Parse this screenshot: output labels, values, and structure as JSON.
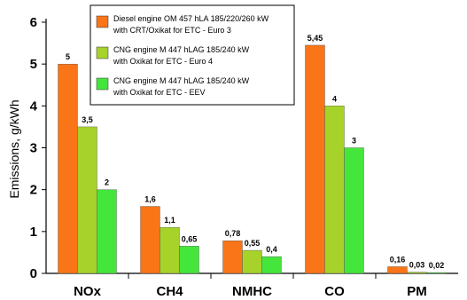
{
  "chart_data": {
    "type": "bar",
    "categories": [
      "NOx",
      "CH4",
      "NMHC",
      "CO",
      "PM"
    ],
    "series": [
      {
        "name_lines": [
          "Diesel engine  OM 457 hLA 185/220/260 kW",
          "with CRT/Oxikat   for   ETC - Euro 3"
        ],
        "color": "#f97518",
        "values": [
          5,
          1.6,
          0.78,
          5.45,
          0.16
        ],
        "labels": [
          "5",
          "1,6",
          "0,78",
          "5,45",
          "0,16"
        ]
      },
      {
        "name_lines": [
          "CNG engine    M 447 hLAG 185/240 kW",
          "with Oxikat   for   ETC - Euro 4"
        ],
        "color": "#a6d22a",
        "values": [
          3.5,
          1.1,
          0.55,
          4,
          0.03
        ],
        "labels": [
          "3,5",
          "1,1",
          "0,55",
          "4",
          "0,03"
        ]
      },
      {
        "name_lines": [
          "CNG engine    M 447 hLAG 185/240 kW",
          "with Oxikat   for   ETC - EEV"
        ],
        "color": "#44e63c",
        "values": [
          2,
          0.65,
          0.4,
          3,
          0.02
        ],
        "labels": [
          "2",
          "0,65",
          "0,4",
          "3",
          "0,02"
        ]
      }
    ],
    "ylabel": "Emissions, g/kWh",
    "ylim": [
      0,
      6
    ],
    "yticks": [
      0,
      1,
      2,
      3,
      4,
      5,
      6
    ],
    "grid": false,
    "legend": "top-center"
  }
}
